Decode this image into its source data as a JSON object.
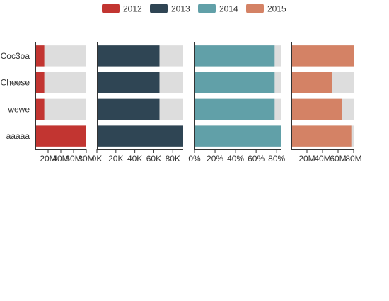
{
  "chart_data": {
    "type": "bar",
    "orientation": "horizontal",
    "layout": "small-multiples",
    "legend": {
      "placement": "top",
      "items": [
        {
          "label": "2012",
          "color": "#c23531"
        },
        {
          "label": "2013",
          "color": "#2f4554"
        },
        {
          "label": "2014",
          "color": "#61a0a8"
        },
        {
          "label": "2015",
          "color": "#d48265"
        }
      ]
    },
    "categories": [
      "Coc3oa",
      "Cheese",
      "wewe",
      "aaaaa"
    ],
    "background_color": "#dddddd",
    "panels": [
      {
        "series": "2012",
        "color": "#c23531",
        "values": [
          14000000,
          14000000,
          14000000,
          80000000
        ],
        "background_max": 80000000,
        "xlim": [
          0,
          80000000
        ],
        "ticks": [
          20000000,
          40000000,
          60000000,
          80000000
        ],
        "tick_labels": [
          "20M",
          "40M",
          "60M",
          "80M"
        ]
      },
      {
        "series": "2013",
        "color": "#2f4554",
        "values": [
          66000,
          66000,
          66000,
          91000
        ],
        "background_max": 91000,
        "xlim": [
          0,
          91000
        ],
        "ticks": [
          0,
          20000,
          40000,
          60000,
          80000
        ],
        "tick_labels": [
          "0K",
          "20K",
          "40K",
          "60K",
          "80K"
        ]
      },
      {
        "series": "2014",
        "color": "#61a0a8",
        "values": [
          0.78,
          0.78,
          0.78,
          0.84
        ],
        "background_max": 0.84,
        "xlim": [
          0,
          0.84
        ],
        "ticks": [
          0,
          0.2,
          0.4,
          0.6,
          0.8
        ],
        "tick_labels": [
          "0%",
          "20%",
          "40%",
          "60%",
          "80%"
        ]
      },
      {
        "series": "2015",
        "color": "#d48265",
        "values": [
          80000000,
          52000000,
          65000000,
          77000000
        ],
        "background_max": 80000000,
        "xlim": [
          0,
          80000000
        ],
        "ticks": [
          20000000,
          40000000,
          60000000,
          80000000
        ],
        "tick_labels": [
          "20M",
          "40M",
          "60M",
          "80M"
        ]
      }
    ]
  }
}
